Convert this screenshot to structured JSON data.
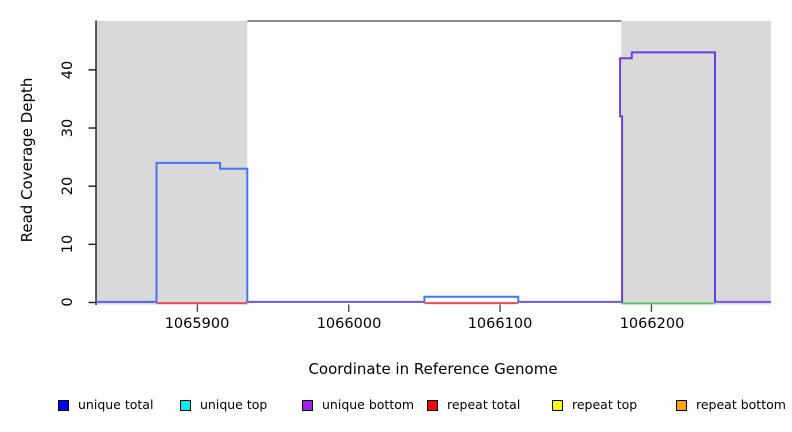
{
  "figure": {
    "x_axis_label": "Coordinate in Reference Genome",
    "y_axis_label": "Read Coverage Depth",
    "x_ticks": [
      "1065900",
      "1066000",
      "1066100",
      "1066200"
    ],
    "y_ticks": [
      "0",
      "10",
      "20",
      "30",
      "40"
    ]
  },
  "legend": {
    "items": [
      {
        "label": "unique total",
        "swatch": "#0000FF"
      },
      {
        "label": "unique top",
        "swatch": "#00EEEE"
      },
      {
        "label": "unique bottom",
        "swatch": "#A020F0"
      },
      {
        "label": "repeat total",
        "swatch": "#FF0000"
      },
      {
        "label": "repeat top",
        "swatch": "#FFFF00"
      },
      {
        "label": "repeat bottom",
        "swatch": "#FFA500"
      }
    ]
  },
  "chart_data": {
    "type": "line",
    "subtype": "step-coverage",
    "title": "",
    "xlabel": "Coordinate in Reference Genome",
    "ylabel": "Read Coverage Depth",
    "x_range": [
      1065833,
      1066279
    ],
    "y_range": [
      0,
      48.4
    ],
    "x_ticks": [
      1065900,
      1066000,
      1066100,
      1066200
    ],
    "y_ticks": [
      0,
      10,
      20,
      30,
      40
    ],
    "grid": "off",
    "legend_position": "bottom",
    "repeat_regions": [
      [
        1065833,
        1065933
      ],
      [
        1066180,
        1066279
      ]
    ],
    "colors": {
      "repeat_region_fill": "#D9D9D9",
      "axis": "#1a1a1a",
      "frame": "#8C8C8C"
    },
    "frame_line": {
      "x_from": 1065933,
      "x_to": 1066180,
      "y": 48.4,
      "color": "#8C8C8C"
    },
    "series_summary": [
      {
        "name": "unique total",
        "steps": [
          {
            "x_from": 1065873,
            "x_to": 1065915,
            "depth": 24
          },
          {
            "x_from": 1065915,
            "x_to": 1065933,
            "depth": 23
          },
          {
            "x_from": 1066050,
            "x_to": 1066112,
            "depth": 1
          }
        ]
      },
      {
        "name": "unique top",
        "steps": []
      },
      {
        "name": "unique bottom",
        "steps": [
          {
            "x_from": 1066180,
            "x_to": 1066187,
            "depth": 42
          },
          {
            "x_from": 1066187,
            "x_to": 1066242,
            "depth": 43
          },
          {
            "x_at_rise": 1066180,
            "sub_step_depth": 32
          }
        ]
      },
      {
        "name": "repeat total",
        "steps": [
          {
            "x_from": 1065873,
            "x_to": 1065933,
            "depth": 0
          },
          {
            "x_from": 1066050,
            "x_to": 1066112,
            "depth": 0
          }
        ]
      },
      {
        "name": "repeat top",
        "steps": []
      },
      {
        "name": "repeat bottom",
        "steps": []
      }
    ],
    "polylines": [
      {
        "name": "repeat-total-line-left",
        "color": "#EA4C5C",
        "points": [
          [
            1065873,
            -0.1
          ],
          [
            1065933,
            -0.1
          ]
        ]
      },
      {
        "name": "repeat-total-line-mid",
        "color": "#EA4C5C",
        "points": [
          [
            1066050,
            -0.1
          ],
          [
            1066112,
            -0.1
          ]
        ]
      },
      {
        "name": "green-baseline-tall",
        "color": "#5CC56A",
        "points": [
          [
            1066180,
            -0.15
          ],
          [
            1066242,
            -0.15
          ]
        ]
      },
      {
        "name": "baseline-left",
        "color": "#5064F0",
        "points": [
          [
            1065833,
            0.1
          ],
          [
            1065873,
            0.1
          ]
        ]
      },
      {
        "name": "baseline-mid-1",
        "color": "#6E52EC",
        "points": [
          [
            1065933,
            0.1
          ],
          [
            1066050,
            0.1
          ]
        ]
      },
      {
        "name": "baseline-mid-2",
        "color": "#6E52EC",
        "points": [
          [
            1066112,
            0.1
          ],
          [
            1066180,
            0.1
          ]
        ]
      },
      {
        "name": "baseline-right",
        "color": "#7A55EE",
        "points": [
          [
            1066242,
            0.1
          ],
          [
            1066279,
            0.1
          ]
        ]
      },
      {
        "name": "unique-total-block-1",
        "color": "#4178F5",
        "points": [
          [
            1065873,
            0
          ],
          [
            1065873,
            24
          ],
          [
            1065915,
            24
          ],
          [
            1065915,
            23
          ],
          [
            1065933,
            23
          ],
          [
            1065933,
            0
          ]
        ]
      },
      {
        "name": "unique-total-block-2",
        "color": "#4178F5",
        "points": [
          [
            1066050,
            0
          ],
          [
            1066050,
            1
          ],
          [
            1066112,
            1
          ],
          [
            1066112,
            0
          ]
        ]
      },
      {
        "name": "unique-bottom-block",
        "color": "#6A3CEB",
        "points": [
          [
            1066180.6,
            0
          ],
          [
            1066180.6,
            32
          ],
          [
            1066179.3,
            32
          ],
          [
            1066179.3,
            42
          ],
          [
            1066187,
            42
          ],
          [
            1066187,
            43
          ],
          [
            1066242,
            43
          ],
          [
            1066242,
            0
          ]
        ]
      }
    ]
  }
}
